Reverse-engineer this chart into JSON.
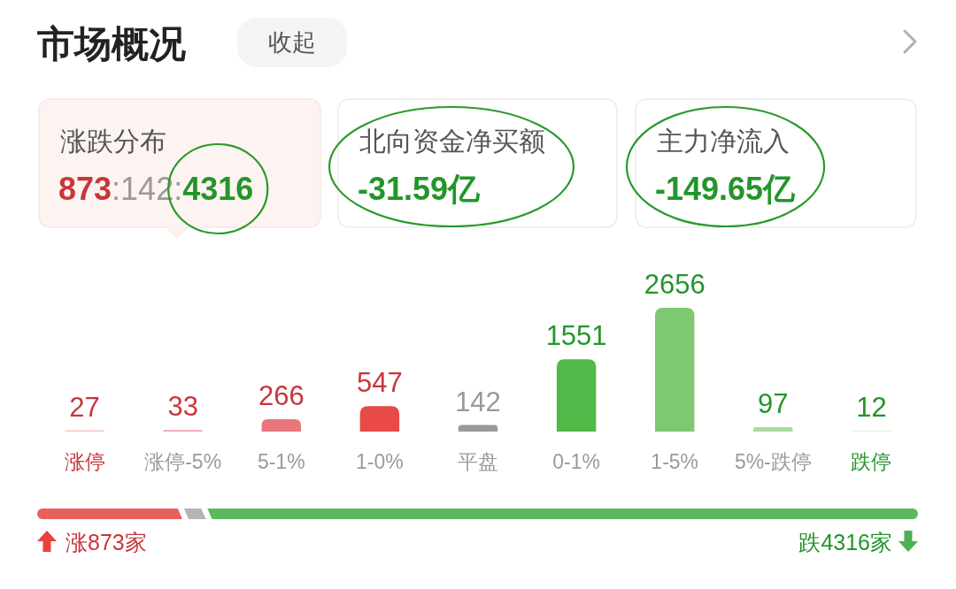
{
  "chart_data": {
    "type": "bar",
    "title": "市场概况",
    "categories": [
      "涨停",
      "涨停-5%",
      "5-1%",
      "1-0%",
      "平盘",
      "0-1%",
      "1-5%",
      "5%-跌停",
      "跌停"
    ],
    "values": [
      27,
      33,
      266,
      547,
      142,
      1551,
      2656,
      97,
      12
    ],
    "colors": [
      "#f5c6c8",
      "#eea6aa",
      "#e8767a",
      "#e84a47",
      "#999999",
      "#52b847",
      "#7dc870",
      "#a9dc9e",
      "#d6eed0"
    ],
    "data_labels": true,
    "annotations": [
      "收起",
      "涨跌分布",
      "873:142:4316",
      "北向资金净买额",
      "-31.59亿",
      "主力净流入",
      "-149.65亿",
      "涨873家",
      "跌4316家"
    ]
  }
}
